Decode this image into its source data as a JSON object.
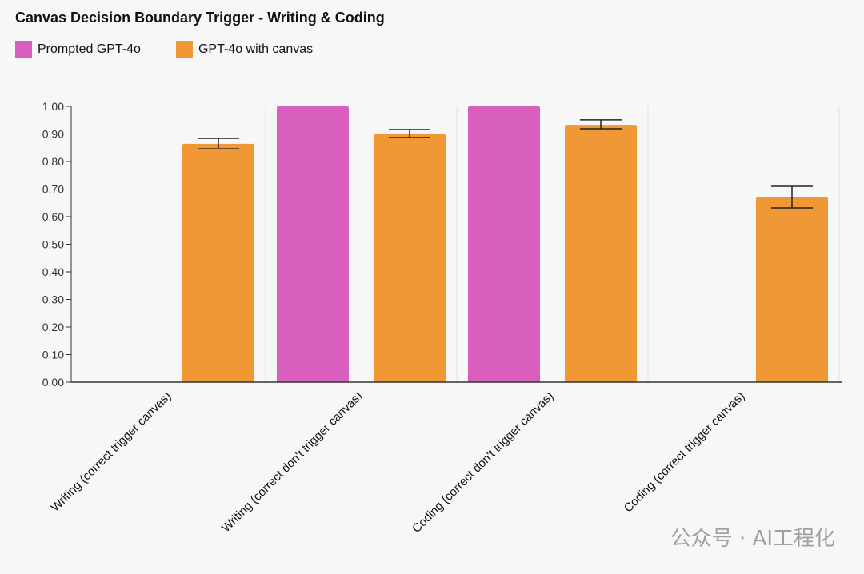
{
  "chart_data": {
    "type": "bar",
    "title": "Canvas Decision Boundary Trigger - Writing & Coding",
    "categories": [
      "Writing (correct trigger canvas)",
      "Writing (correct don't trigger canvas)",
      "Coding (correct don't trigger canvas)",
      "Coding (correct trigger canvas)"
    ],
    "series": [
      {
        "name": "Prompted GPT-4o",
        "color": "#d95fbf",
        "values": [
          null,
          1.0,
          1.0,
          null
        ],
        "error_low": [
          null,
          null,
          null,
          null
        ],
        "error_high": [
          null,
          null,
          null,
          null
        ]
      },
      {
        "name": "GPT-4o with canvas",
        "color": "#f09836",
        "values": [
          0.864,
          0.899,
          0.933,
          0.67
        ],
        "error_low": [
          0.846,
          0.887,
          0.919,
          0.632
        ],
        "error_high": [
          0.884,
          0.916,
          0.951,
          0.71
        ]
      }
    ],
    "ylim": [
      0,
      1.0
    ],
    "yticks": [
      "0.00",
      "0.10",
      "0.20",
      "0.30",
      "0.40",
      "0.50",
      "0.60",
      "0.70",
      "0.80",
      "0.90",
      "1.00"
    ],
    "legend": "top-left",
    "grid": false
  },
  "watermark": "公众号 · AI工程化"
}
